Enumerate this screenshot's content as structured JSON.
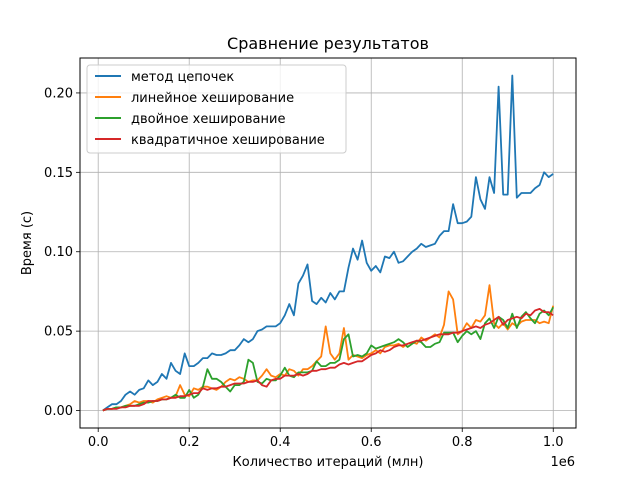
{
  "chart_data": {
    "type": "line",
    "title": "Сравнение результатов",
    "xlabel": "Количество итераций (млн)",
    "ylabel": "Время (с)",
    "x_offset_label": "1e6",
    "xlim": [
      -40000,
      1050000
    ],
    "ylim": [
      -0.011,
      0.222
    ],
    "xticks": [
      0,
      200000,
      400000,
      600000,
      800000,
      1000000
    ],
    "xtick_labels": [
      "0.0",
      "0.2",
      "0.4",
      "0.6",
      "0.8",
      "1.0"
    ],
    "yticks": [
      0.0,
      0.05,
      0.1,
      0.15,
      0.2
    ],
    "ytick_labels": [
      "0.00",
      "0.05",
      "0.10",
      "0.15",
      "0.20"
    ],
    "grid": true,
    "legend_position": "upper left",
    "x": [
      10000,
      20000,
      30000,
      40000,
      50000,
      60000,
      70000,
      80000,
      90000,
      100000,
      110000,
      120000,
      130000,
      140000,
      150000,
      160000,
      170000,
      180000,
      190000,
      200000,
      210000,
      220000,
      230000,
      240000,
      250000,
      260000,
      270000,
      280000,
      290000,
      300000,
      310000,
      320000,
      330000,
      340000,
      350000,
      360000,
      370000,
      380000,
      390000,
      400000,
      410000,
      420000,
      430000,
      440000,
      450000,
      460000,
      470000,
      480000,
      490000,
      500000,
      510000,
      520000,
      530000,
      540000,
      550000,
      560000,
      570000,
      580000,
      590000,
      600000,
      610000,
      620000,
      630000,
      640000,
      650000,
      660000,
      670000,
      680000,
      690000,
      700000,
      710000,
      720000,
      730000,
      740000,
      750000,
      760000,
      770000,
      780000,
      790000,
      800000,
      810000,
      820000,
      830000,
      840000,
      850000,
      860000,
      870000,
      880000,
      890000,
      900000,
      910000,
      920000,
      930000,
      940000,
      950000,
      960000,
      970000,
      980000,
      990000,
      1000000
    ],
    "series": [
      {
        "name": "метод цепочек",
        "color": "#1f77b4",
        "values": [
          0.0,
          0.002,
          0.004,
          0.004,
          0.006,
          0.01,
          0.012,
          0.01,
          0.013,
          0.014,
          0.019,
          0.016,
          0.018,
          0.023,
          0.02,
          0.03,
          0.025,
          0.023,
          0.036,
          0.028,
          0.028,
          0.03,
          0.033,
          0.033,
          0.036,
          0.035,
          0.035,
          0.036,
          0.038,
          0.038,
          0.041,
          0.045,
          0.043,
          0.045,
          0.05,
          0.051,
          0.053,
          0.053,
          0.053,
          0.055,
          0.06,
          0.067,
          0.06,
          0.08,
          0.085,
          0.092,
          0.069,
          0.067,
          0.071,
          0.068,
          0.074,
          0.07,
          0.075,
          0.075,
          0.09,
          0.102,
          0.095,
          0.107,
          0.093,
          0.088,
          0.091,
          0.087,
          0.097,
          0.096,
          0.1,
          0.093,
          0.094,
          0.097,
          0.1,
          0.102,
          0.105,
          0.103,
          0.104,
          0.105,
          0.11,
          0.113,
          0.113,
          0.13,
          0.118,
          0.118,
          0.119,
          0.122,
          0.147,
          0.133,
          0.127,
          0.147,
          0.137,
          0.204,
          0.136,
          0.136,
          0.211,
          0.134,
          0.137,
          0.137,
          0.137,
          0.14,
          0.142,
          0.15,
          0.147,
          0.149
        ]
      },
      {
        "name": "линейное хеширование",
        "color": "#ff7f0e",
        "values": [
          0.0,
          0.001,
          0.001,
          0.002,
          0.002,
          0.003,
          0.004,
          0.006,
          0.005,
          0.006,
          0.006,
          0.005,
          0.007,
          0.008,
          0.009,
          0.008,
          0.009,
          0.016,
          0.01,
          0.009,
          0.014,
          0.013,
          0.015,
          0.015,
          0.014,
          0.013,
          0.015,
          0.018,
          0.02,
          0.019,
          0.021,
          0.02,
          0.018,
          0.019,
          0.019,
          0.022,
          0.026,
          0.022,
          0.021,
          0.023,
          0.022,
          0.026,
          0.025,
          0.022,
          0.026,
          0.026,
          0.028,
          0.031,
          0.034,
          0.053,
          0.036,
          0.032,
          0.036,
          0.052,
          0.032,
          0.035,
          0.034,
          0.033,
          0.035,
          0.036,
          0.038,
          0.036,
          0.04,
          0.041,
          0.041,
          0.042,
          0.04,
          0.042,
          0.043,
          0.042,
          0.046,
          0.044,
          0.046,
          0.048,
          0.046,
          0.054,
          0.075,
          0.07,
          0.048,
          0.05,
          0.055,
          0.052,
          0.057,
          0.056,
          0.06,
          0.079,
          0.055,
          0.052,
          0.055,
          0.051,
          0.055,
          0.053,
          0.056,
          0.057,
          0.057,
          0.057,
          0.055,
          0.056,
          0.055,
          0.066
        ]
      },
      {
        "name": "двойное хеширование",
        "color": "#2ca02c",
        "values": [
          0.0,
          0.001,
          0.001,
          0.002,
          0.002,
          0.003,
          0.003,
          0.003,
          0.004,
          0.005,
          0.005,
          0.006,
          0.006,
          0.007,
          0.007,
          0.008,
          0.01,
          0.008,
          0.008,
          0.013,
          0.008,
          0.01,
          0.015,
          0.026,
          0.02,
          0.02,
          0.018,
          0.015,
          0.012,
          0.016,
          0.016,
          0.018,
          0.032,
          0.03,
          0.018,
          0.017,
          0.02,
          0.019,
          0.019,
          0.022,
          0.027,
          0.022,
          0.021,
          0.024,
          0.024,
          0.024,
          0.025,
          0.031,
          0.028,
          0.028,
          0.03,
          0.03,
          0.032,
          0.045,
          0.048,
          0.034,
          0.035,
          0.034,
          0.036,
          0.041,
          0.039,
          0.04,
          0.041,
          0.042,
          0.043,
          0.045,
          0.043,
          0.04,
          0.042,
          0.044,
          0.043,
          0.04,
          0.04,
          0.042,
          0.043,
          0.049,
          0.049,
          0.049,
          0.043,
          0.047,
          0.05,
          0.048,
          0.05,
          0.045,
          0.055,
          0.058,
          0.052,
          0.059,
          0.057,
          0.052,
          0.061,
          0.052,
          0.059,
          0.062,
          0.058,
          0.055,
          0.061,
          0.063,
          0.06,
          0.065
        ]
      },
      {
        "name": "квадратичное хеширование",
        "color": "#d62728",
        "values": [
          0.0,
          0.001,
          0.001,
          0.001,
          0.002,
          0.002,
          0.003,
          0.003,
          0.003,
          0.004,
          0.006,
          0.006,
          0.006,
          0.007,
          0.007,
          0.008,
          0.008,
          0.009,
          0.009,
          0.01,
          0.011,
          0.011,
          0.014,
          0.013,
          0.014,
          0.014,
          0.015,
          0.015,
          0.016,
          0.017,
          0.017,
          0.017,
          0.018,
          0.018,
          0.019,
          0.016,
          0.015,
          0.019,
          0.02,
          0.02,
          0.022,
          0.022,
          0.022,
          0.023,
          0.022,
          0.023,
          0.025,
          0.025,
          0.026,
          0.026,
          0.027,
          0.027,
          0.029,
          0.03,
          0.029,
          0.03,
          0.031,
          0.031,
          0.033,
          0.035,
          0.036,
          0.038,
          0.037,
          0.038,
          0.04,
          0.041,
          0.041,
          0.042,
          0.043,
          0.044,
          0.044,
          0.045,
          0.046,
          0.047,
          0.048,
          0.048,
          0.048,
          0.049,
          0.049,
          0.05,
          0.051,
          0.052,
          0.053,
          0.052,
          0.054,
          0.055,
          0.057,
          0.059,
          0.054,
          0.057,
          0.058,
          0.059,
          0.058,
          0.061,
          0.06,
          0.063,
          0.064,
          0.062,
          0.062,
          0.06
        ]
      }
    ]
  }
}
